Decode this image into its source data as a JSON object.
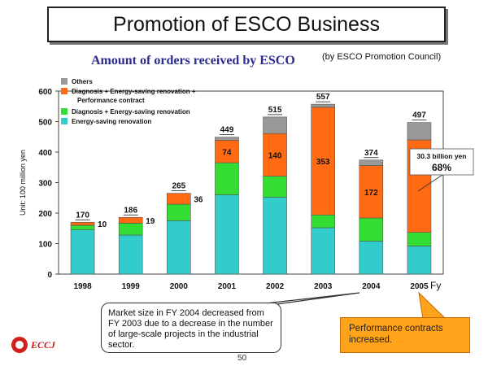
{
  "slide": {
    "title": "Promotion of ESCO Business",
    "source_note": "(by ESCO Promotion Council)",
    "callout_market": "Market size in FY 2004 decreased from FY 2003 due to a decrease in the number of large-scale projects in the industrial sector.",
    "callout_performance": "Performance contracts increased.",
    "page_number": "50",
    "logo_text": "ECCJ"
  },
  "chart_data": {
    "type": "bar",
    "stacked": true,
    "title": "Amount of orders received by ESCO",
    "xlabel": "Fy",
    "ylabel": "Unit: 100 million yen",
    "ylim": [
      0,
      600
    ],
    "yticks": [
      0,
      100,
      200,
      300,
      400,
      500,
      600
    ],
    "categories": [
      "1998",
      "1999",
      "2000",
      "2001",
      "2002",
      "2003",
      "2004",
      "2005"
    ],
    "series": [
      {
        "name": "Energy-saving renovation",
        "color": "#33cccc",
        "values": [
          145,
          128,
          175,
          260,
          252,
          152,
          108,
          92
        ]
      },
      {
        "name": "Diagnosis + Energy-saving renovation",
        "color": "#33dd33",
        "values": [
          15,
          39,
          54,
          105,
          69,
          42,
          76,
          45
        ]
      },
      {
        "name": "Diagnosis + Energy-saving renovation + Performance contract",
        "color": "#ff6a13",
        "values": [
          10,
          19,
          36,
          74,
          140,
          353,
          172,
          303
        ]
      },
      {
        "name": "Others",
        "color": "#999999",
        "values": [
          0,
          0,
          0,
          10,
          54,
          10,
          18,
          57
        ]
      }
    ],
    "totals": [
      "170",
      "186",
      "265",
      "449",
      "515",
      "557",
      "374",
      "497"
    ],
    "data_labels": [
      {
        "category": "1998",
        "text": "10",
        "placement": "right"
      },
      {
        "category": "1999",
        "text": "19",
        "placement": "right"
      },
      {
        "category": "2000",
        "text": "36",
        "placement": "right"
      },
      {
        "category": "2001",
        "text": "74",
        "placement": "inside"
      },
      {
        "category": "2002",
        "text": "140",
        "placement": "inside"
      },
      {
        "category": "2003",
        "text": "353",
        "placement": "inside"
      },
      {
        "category": "2004",
        "text": "172",
        "placement": "inside"
      }
    ],
    "annotation_2005": {
      "line1": "30.3 billion yen",
      "line2": "68%"
    },
    "legend_placement": "top-left",
    "grid": false
  }
}
